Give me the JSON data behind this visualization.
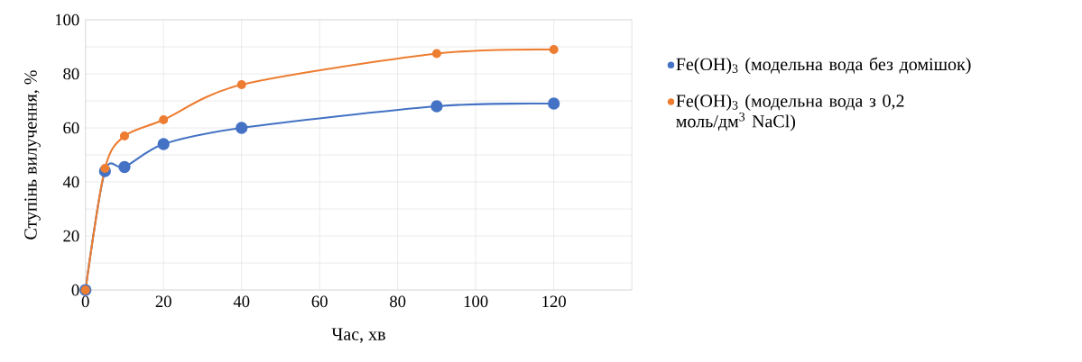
{
  "chart_data": {
    "type": "line",
    "xlabel": "Час, хв",
    "ylabel": "Ступінь вилучення, %",
    "x": [
      0,
      5,
      10,
      20,
      40,
      90,
      120
    ],
    "series": [
      {
        "name": "Fe(OH)$_{3}$ (модельна вода без домішок)",
        "color": "#4472c4",
        "values": [
          0,
          44,
          45.5,
          54,
          60,
          68,
          69
        ]
      },
      {
        "name": "Fe(OH)$_{3}$  (модельна вода з 0,2 моль/дм$^{3}$ NaCl)",
        "color": "#ed7d31",
        "values": [
          0,
          45,
          57,
          63,
          76,
          87.5,
          89
        ]
      }
    ],
    "xlim": [
      0,
      140
    ],
    "ylim": [
      0,
      100
    ],
    "xticks": [
      0,
      20,
      40,
      60,
      80,
      100,
      120
    ],
    "yticks": [
      0,
      {
        "value": 10,
        "label": null
      },
      20,
      {
        "value": 30,
        "label": null
      },
      40,
      {
        "value": 50,
        "label": null
      },
      60,
      {
        "value": 70,
        "label": null
      },
      80,
      {
        "value": 90,
        "label": null
      },
      100
    ],
    "grid": true,
    "legend": "right",
    "marker": "circle",
    "line_style": "solid"
  }
}
